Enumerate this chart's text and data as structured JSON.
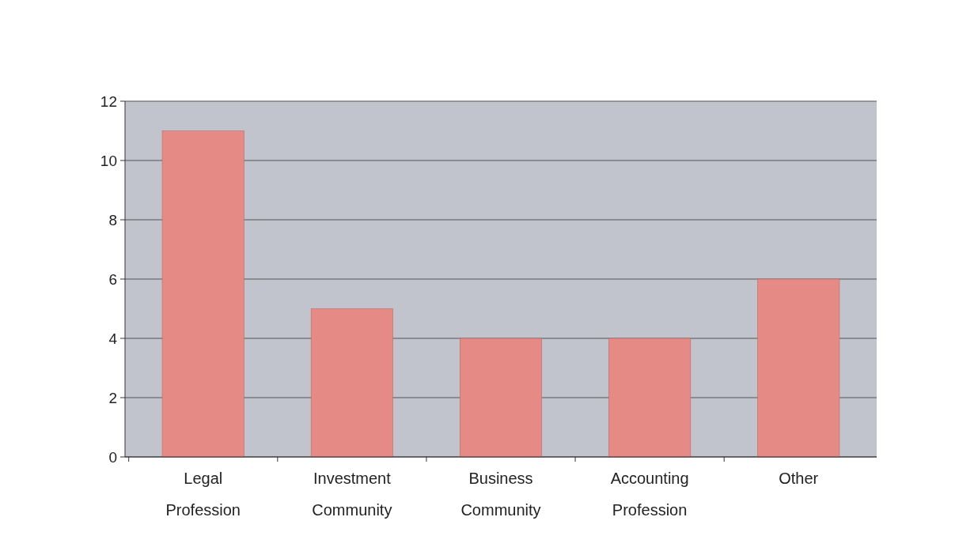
{
  "chart_data": {
    "type": "bar",
    "categories": [
      "Legal\nProfession",
      "Investment\nCommunity",
      "Business\nCommunity",
      "Accounting\nProfession",
      "Other"
    ],
    "values": [
      11,
      5,
      4,
      4,
      6
    ],
    "color": "#e68a86",
    "ylim": [
      0,
      12
    ],
    "yticks": [
      0,
      2,
      4,
      6,
      8,
      10,
      12
    ],
    "grid": "y"
  }
}
